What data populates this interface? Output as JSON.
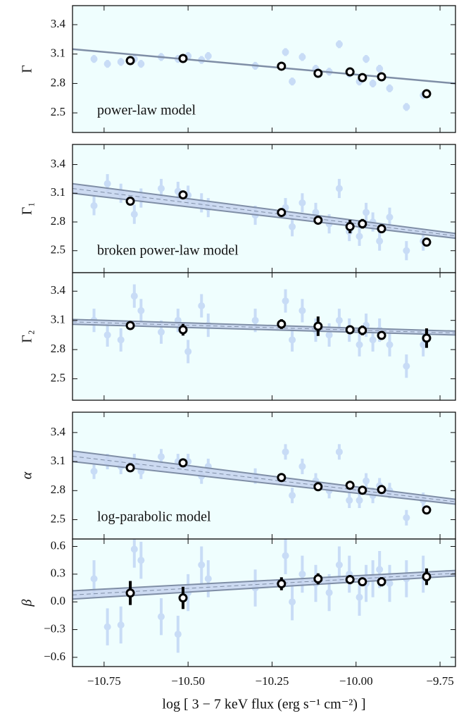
{
  "chart_data": [
    {
      "type": "scatter",
      "ylabel": "Γ",
      "annotation": "power-law model",
      "background": "#effefe",
      "xlim": [
        -10.844,
        -9.704
      ],
      "ylim": [
        2.3,
        3.594
      ],
      "yticks": [
        2.5,
        2.8,
        3.1,
        3.4
      ],
      "samples": {
        "color": "#c8dcf6",
        "x": [
          -10.78,
          -10.74,
          -10.7,
          -10.66,
          -10.64,
          -10.58,
          -10.53,
          -10.5,
          -10.46,
          -10.44,
          -10.3,
          -10.21,
          -10.19,
          -10.16,
          -10.12,
          -10.08,
          -10.05,
          -10.02,
          -9.99,
          -9.97,
          -9.95,
          -9.93,
          -9.9,
          -9.85,
          -9.8
        ],
        "y": [
          3.05,
          3.0,
          3.02,
          3.05,
          3.0,
          3.07,
          3.05,
          3.08,
          3.04,
          3.08,
          2.98,
          3.12,
          2.82,
          3.07,
          2.95,
          2.92,
          3.2,
          2.9,
          2.82,
          3.05,
          2.8,
          2.95,
          2.75,
          2.56,
          2.68
        ],
        "yerr": [
          0.04,
          0.04,
          0.04,
          0.04,
          0.04,
          0.04,
          0.04,
          0.04,
          0.04,
          0.04,
          0.04,
          0.04,
          0.04,
          0.04,
          0.04,
          0.04,
          0.04,
          0.04,
          0.04,
          0.04,
          0.04,
          0.04,
          0.04,
          0.04,
          0.04
        ]
      },
      "binned": {
        "color": "#000000",
        "x": [
          -10.672,
          -10.515,
          -10.222,
          -10.113,
          -10.018,
          -9.981,
          -9.924,
          -9.79
        ],
        "y": [
          3.033,
          3.055,
          2.976,
          2.904,
          2.918,
          2.86,
          2.868,
          2.695
        ],
        "yerr": [
          0.02,
          0.02,
          0.02,
          0.02,
          0.02,
          0.02,
          0.02,
          0.02
        ]
      },
      "fit": {
        "color": "#7f8ea6",
        "x": [
          -10.844,
          -9.704
        ],
        "y": [
          3.15,
          2.8
        ]
      }
    },
    {
      "type": "scatter",
      "ylabel": "Γ₁",
      "annotation": "broken power-law model",
      "background": "#effefe",
      "xlim": [
        -10.844,
        -9.704
      ],
      "ylim": [
        2.27,
        3.61
      ],
      "yticks": [
        2.5,
        2.8,
        3.1,
        3.4
      ],
      "samples": {
        "color": "#c8dcf6",
        "x": [
          -10.78,
          -10.74,
          -10.7,
          -10.66,
          -10.64,
          -10.58,
          -10.53,
          -10.5,
          -10.46,
          -10.44,
          -10.3,
          -10.21,
          -10.19,
          -10.16,
          -10.12,
          -10.08,
          -10.05,
          -10.02,
          -9.99,
          -9.97,
          -9.95,
          -9.93,
          -9.9,
          -9.85,
          -9.8
        ],
        "y": [
          2.97,
          3.2,
          3.1,
          2.88,
          3.05,
          3.15,
          3.12,
          3.08,
          3.0,
          2.95,
          2.87,
          2.95,
          2.75,
          3.0,
          2.9,
          2.78,
          3.15,
          2.7,
          2.65,
          2.9,
          2.8,
          2.6,
          2.85,
          2.5,
          2.6
        ],
        "yerr": [
          0.1,
          0.1,
          0.1,
          0.1,
          0.1,
          0.1,
          0.1,
          0.1,
          0.1,
          0.1,
          0.1,
          0.1,
          0.1,
          0.1,
          0.1,
          0.1,
          0.1,
          0.1,
          0.1,
          0.1,
          0.1,
          0.1,
          0.1,
          0.1,
          0.1
        ]
      },
      "binned": {
        "color": "#000000",
        "x": [
          -10.672,
          -10.515,
          -10.222,
          -10.113,
          -10.018,
          -9.981,
          -9.924,
          -9.79
        ],
        "y": [
          3.017,
          3.083,
          2.899,
          2.818,
          2.752,
          2.781,
          2.729,
          2.589
        ],
        "yerr": [
          0.03,
          0.04,
          0.03,
          0.04,
          0.07,
          0.05,
          0.04,
          0.03
        ]
      },
      "fit": {
        "color": "#7f8ea6",
        "fill": "#c6d3ee",
        "x": [
          -10.844,
          -9.704
        ],
        "upper": [
          3.2,
          2.68
        ],
        "lower": [
          3.1,
          2.63
        ],
        "mean": [
          3.15,
          2.655
        ]
      }
    },
    {
      "type": "scatter",
      "ylabel": "Γ₂",
      "background": "#effefe",
      "xlim": [
        -10.844,
        -9.704
      ],
      "ylim": [
        2.28,
        3.59
      ],
      "yticks": [
        2.5,
        2.8,
        3.1,
        3.4
      ],
      "samples": {
        "color": "#c8dcf6",
        "x": [
          -10.78,
          -10.74,
          -10.7,
          -10.66,
          -10.64,
          -10.58,
          -10.53,
          -10.5,
          -10.46,
          -10.44,
          -10.3,
          -10.21,
          -10.19,
          -10.16,
          -10.12,
          -10.08,
          -10.05,
          -10.02,
          -9.99,
          -9.97,
          -9.95,
          -9.93,
          -9.9,
          -9.85,
          -9.8
        ],
        "y": [
          3.1,
          2.95,
          2.9,
          3.35,
          3.2,
          2.98,
          3.1,
          2.78,
          3.25,
          3.05,
          3.1,
          3.3,
          2.9,
          3.2,
          3.0,
          2.95,
          3.1,
          3.0,
          2.85,
          3.05,
          2.9,
          3.0,
          2.85,
          2.63,
          2.85
        ],
        "yerr": [
          0.12,
          0.12,
          0.12,
          0.12,
          0.12,
          0.12,
          0.12,
          0.12,
          0.12,
          0.12,
          0.12,
          0.12,
          0.12,
          0.12,
          0.12,
          0.12,
          0.12,
          0.12,
          0.12,
          0.12,
          0.12,
          0.12,
          0.12,
          0.12,
          0.12
        ]
      },
      "binned": {
        "color": "#000000",
        "x": [
          -10.672,
          -10.515,
          -10.222,
          -10.113,
          -10.018,
          -9.981,
          -9.924,
          -9.79
        ],
        "y": [
          3.047,
          3.004,
          3.062,
          3.04,
          3.004,
          2.997,
          2.946,
          2.918
        ],
        "yerr": [
          0.04,
          0.06,
          0.05,
          0.1,
          0.04,
          0.05,
          0.03,
          0.1
        ]
      },
      "fit": {
        "color": "#7f8ea6",
        "fill": "#c6d3ee",
        "x": [
          -10.844,
          -9.704
        ],
        "upper": [
          3.11,
          2.99
        ],
        "lower": [
          3.06,
          2.95
        ],
        "mean": [
          3.085,
          2.97
        ]
      }
    },
    {
      "type": "scatter",
      "ylabel": "α",
      "annotation": "log-parabolic model",
      "background": "#effefe",
      "xlim": [
        -10.844,
        -9.704
      ],
      "ylim": [
        2.3,
        3.61
      ],
      "yticks": [
        2.5,
        2.8,
        3.1,
        3.4
      ],
      "samples": {
        "color": "#c8dcf6",
        "x": [
          -10.78,
          -10.74,
          -10.7,
          -10.66,
          -10.64,
          -10.58,
          -10.53,
          -10.5,
          -10.46,
          -10.44,
          -10.3,
          -10.21,
          -10.19,
          -10.16,
          -10.12,
          -10.08,
          -10.05,
          -10.02,
          -9.99,
          -9.97,
          -9.95,
          -9.93,
          -9.9,
          -9.85,
          -9.8
        ],
        "y": [
          3.0,
          3.1,
          3.05,
          3.1,
          3.0,
          3.15,
          3.1,
          3.1,
          2.95,
          3.05,
          2.95,
          3.2,
          2.75,
          3.05,
          2.9,
          2.8,
          3.2,
          2.7,
          2.7,
          2.9,
          2.75,
          2.85,
          2.8,
          2.52,
          2.7
        ],
        "yerr": [
          0.08,
          0.08,
          0.08,
          0.08,
          0.08,
          0.08,
          0.08,
          0.08,
          0.08,
          0.08,
          0.08,
          0.08,
          0.08,
          0.08,
          0.08,
          0.08,
          0.08,
          0.08,
          0.08,
          0.08,
          0.08,
          0.08,
          0.08,
          0.08,
          0.08
        ]
      },
      "binned": {
        "color": "#000000",
        "x": [
          -10.672,
          -10.515,
          -10.222,
          -10.113,
          -10.018,
          -9.981,
          -9.924,
          -9.79
        ],
        "y": [
          3.036,
          3.087,
          2.935,
          2.84,
          2.855,
          2.804,
          2.811,
          2.6
        ],
        "yerr": [
          0.02,
          0.02,
          0.02,
          0.02,
          0.02,
          0.02,
          0.02,
          0.02
        ]
      },
      "fit": {
        "color": "#7f8ea6",
        "fill": "#c6d3ee",
        "x": [
          -10.844,
          -9.704
        ],
        "upper": [
          3.21,
          2.71
        ],
        "lower": [
          3.1,
          2.66
        ],
        "mean": [
          3.155,
          2.685
        ]
      }
    },
    {
      "type": "scatter",
      "ylabel": "β",
      "background": "#effefe",
      "xlabel": "log [ 3 − 7 keV flux (erg s⁻¹ cm⁻²) ]",
      "xlim": [
        -10.844,
        -9.704
      ],
      "ylim": [
        -0.7,
        0.68
      ],
      "xticks": [
        {
          "value": -10.75,
          "label": "−10.75"
        },
        {
          "value": -10.5,
          "label": "−10.50"
        },
        {
          "value": -10.25,
          "label": "−10.25"
        },
        {
          "value": -10,
          "label": "−10.00"
        },
        {
          "value": -9.75,
          "label": "−9.75"
        }
      ],
      "yticks": [
        {
          "value": -0.6,
          "label": "−0.6"
        },
        {
          "value": -0.3,
          "label": "−0.3"
        },
        {
          "value": 0,
          "label": "0.0"
        },
        0.3,
        0.6
      ],
      "samples": {
        "color": "#c8dcf6",
        "x": [
          -10.78,
          -10.74,
          -10.7,
          -10.66,
          -10.64,
          -10.58,
          -10.53,
          -10.5,
          -10.46,
          -10.44,
          -10.3,
          -10.21,
          -10.19,
          -10.16,
          -10.12,
          -10.08,
          -10.05,
          -10.02,
          -9.99,
          -9.97,
          -9.95,
          -9.93,
          -9.9,
          -9.85,
          -9.8
        ],
        "y": [
          0.25,
          -0.27,
          -0.25,
          0.57,
          0.45,
          -0.16,
          -0.35,
          0.1,
          0.4,
          0.25,
          0.15,
          0.5,
          0.0,
          0.3,
          0.2,
          0.1,
          0.4,
          0.3,
          0.05,
          0.2,
          0.25,
          0.35,
          0.2,
          0.25,
          0.3
        ],
        "yerr": [
          0.2,
          0.2,
          0.2,
          0.2,
          0.2,
          0.2,
          0.2,
          0.2,
          0.2,
          0.2,
          0.2,
          0.2,
          0.2,
          0.2,
          0.2,
          0.2,
          0.2,
          0.2,
          0.2,
          0.2,
          0.2,
          0.2,
          0.2,
          0.2,
          0.2
        ]
      },
      "binned": {
        "color": "#000000",
        "x": [
          -10.672,
          -10.515,
          -10.222,
          -10.113,
          -10.018,
          -9.981,
          -9.924,
          -9.79
        ],
        "y": [
          0.096,
          0.043,
          0.196,
          0.249,
          0.241,
          0.218,
          0.218,
          0.272
        ],
        "yerr": [
          0.13,
          0.12,
          0.07,
          0.06,
          0.05,
          0.03,
          0.05,
          0.09
        ]
      },
      "fit": {
        "color": "#7f8ea6",
        "fill": "#c6d3ee",
        "x": [
          -10.844,
          -9.704
        ],
        "upper": [
          0.12,
          0.34
        ],
        "lower": [
          0.03,
          0.28
        ],
        "mean": [
          0.075,
          0.31
        ]
      }
    }
  ]
}
